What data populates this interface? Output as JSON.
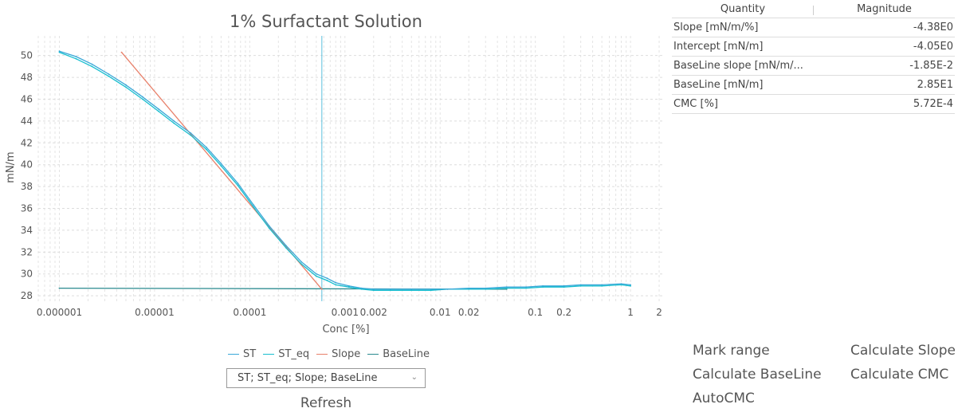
{
  "chart": {
    "title": "1% Surfactant Solution",
    "xlabel": "Conc [%]",
    "ylabel": "mN/m"
  },
  "chart_data": {
    "type": "line",
    "title": "1% Surfactant Solution",
    "xlabel": "Conc [%]",
    "ylabel": "mN/m",
    "x_scale": "log",
    "xlim": [
      6e-07,
      2.2
    ],
    "ylim": [
      27.5,
      51.8
    ],
    "grid": true,
    "legend_position": "bottom",
    "x_ticks": [
      {
        "value": 1e-06,
        "label": "0.000001"
      },
      {
        "value": 1e-05,
        "label": "0.00001"
      },
      {
        "value": 0.0001,
        "label": "0.0001"
      },
      {
        "value": 0.001,
        "label": "0.001"
      },
      {
        "value": 0.002,
        "label": "0.002"
      },
      {
        "value": 0.01,
        "label": "0.01"
      },
      {
        "value": 0.02,
        "label": "0.02"
      },
      {
        "value": 0.1,
        "label": "0.1"
      },
      {
        "value": 0.2,
        "label": "0.2"
      },
      {
        "value": 1,
        "label": "1"
      },
      {
        "value": 2,
        "label": "2"
      }
    ],
    "y_ticks": [
      28,
      30,
      32,
      34,
      36,
      38,
      40,
      42,
      44,
      46,
      48,
      50
    ],
    "cmc_marker_x": 0.000572,
    "series": [
      {
        "name": "ST",
        "color": "#3aa8d8",
        "x": [
          1e-06,
          1.5e-06,
          2.2e-06,
          3.3e-06,
          5e-06,
          7.5e-06,
          1.1e-05,
          1.6e-05,
          2.4e-05,
          3.5e-05,
          5e-05,
          7.5e-05,
          0.00011,
          0.00016,
          0.00024,
          0.00035,
          0.0005,
          0.00065,
          0.0008,
          0.0011,
          0.0015,
          0.002,
          0.003,
          0.005,
          0.008,
          0.012,
          0.02,
          0.03,
          0.05,
          0.08,
          0.12,
          0.2,
          0.3,
          0.5,
          0.8,
          1
        ],
        "values": [
          50.4,
          49.9,
          49.2,
          48.3,
          47.3,
          46.2,
          45.1,
          44.0,
          42.9,
          41.6,
          40.1,
          38.3,
          36.3,
          34.4,
          32.6,
          31.1,
          30.0,
          29.6,
          29.2,
          28.9,
          28.7,
          28.6,
          28.6,
          28.6,
          28.6,
          28.6,
          28.7,
          28.7,
          28.8,
          28.8,
          28.9,
          28.9,
          29.0,
          29.0,
          29.1,
          29.0
        ]
      },
      {
        "name": "ST_eq",
        "color": "#17becf",
        "x": [
          1e-06,
          1.5e-06,
          2.2e-06,
          3.3e-06,
          5e-06,
          7.5e-06,
          1.1e-05,
          1.6e-05,
          2.4e-05,
          3.5e-05,
          5e-05,
          7.5e-05,
          0.00011,
          0.00016,
          0.00024,
          0.00035,
          0.0005,
          0.00065,
          0.0008,
          0.0011,
          0.0015,
          0.002,
          0.003,
          0.005,
          0.008,
          0.012,
          0.02,
          0.03,
          0.05,
          0.08,
          0.12,
          0.2,
          0.3,
          0.5,
          0.8,
          1
        ],
        "values": [
          50.3,
          49.7,
          49.0,
          48.1,
          47.1,
          46.0,
          44.9,
          43.8,
          42.7,
          41.4,
          39.9,
          38.1,
          36.1,
          34.2,
          32.4,
          30.9,
          29.8,
          29.4,
          29.0,
          28.8,
          28.6,
          28.5,
          28.5,
          28.5,
          28.5,
          28.6,
          28.6,
          28.6,
          28.7,
          28.7,
          28.8,
          28.8,
          28.9,
          28.9,
          29.0,
          28.9
        ]
      },
      {
        "name": "Slope",
        "color": "#e8806a",
        "x": [
          4.5e-06,
          0.000572
        ],
        "values": [
          50.3,
          28.6
        ]
      },
      {
        "name": "BaseLine",
        "color": "#2a8a8f",
        "x": [
          1e-06,
          0.05
        ],
        "values": [
          28.7,
          28.6
        ]
      }
    ]
  },
  "legend": {
    "items": [
      {
        "label": "ST",
        "color": "#3aa8d8"
      },
      {
        "label": "ST_eq",
        "color": "#17becf"
      },
      {
        "label": "Slope",
        "color": "#e8806a"
      },
      {
        "label": "BaseLine",
        "color": "#2a8a8f"
      }
    ]
  },
  "series_select": {
    "value": "ST; ST_eq; Slope; BaseLine"
  },
  "refresh_label": "Refresh",
  "table": {
    "headers": [
      "Quantity",
      "Magnitude"
    ],
    "rows": [
      {
        "quantity": "Slope  [mN/m/%]",
        "magnitude": "-4.38E0"
      },
      {
        "quantity": "Intercept  [mN/m]",
        "magnitude": "-4.05E0"
      },
      {
        "quantity": "BaseLine slope  [mN/m/...",
        "magnitude": "-1.85E-2"
      },
      {
        "quantity": "BaseLine  [mN/m]",
        "magnitude": "2.85E1"
      },
      {
        "quantity": "CMC [%]",
        "magnitude": "5.72E-4"
      }
    ]
  },
  "actions": {
    "mark_range": "Mark range",
    "calculate_slope": "Calculate Slope",
    "calculate_baseline": "Calculate BaseLine",
    "calculate_cmc": "Calculate CMC",
    "autocmc": "AutoCMC"
  }
}
